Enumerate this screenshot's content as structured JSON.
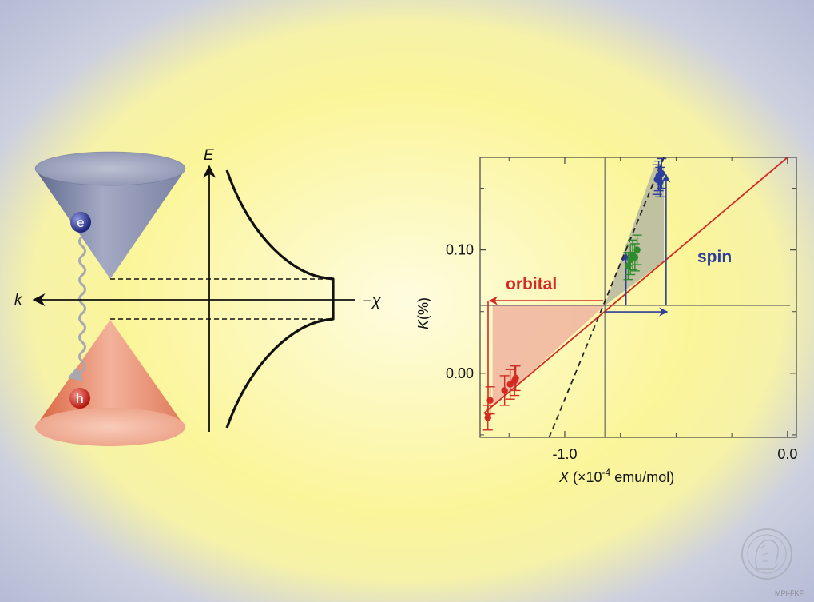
{
  "band_diagram": {
    "energy_axis_label": "E",
    "momentum_axis_label": "k",
    "chi_axis_label": "−χ",
    "electron_label": "e",
    "hole_label": "h",
    "colors": {
      "conduction_cone": "#8d95b4",
      "valence_cone": "#e7866c",
      "electron": "#2d3590",
      "hole": "#d32a22",
      "wavy_line": "#a8a8b0"
    }
  },
  "chart_data": {
    "type": "scatter",
    "xlabel_var": "X",
    "xlabel_rest": " (×10",
    "xlabel_exp": "-4",
    "xlabel_unit": " emu/mol)",
    "ylabel_var": "K",
    "ylabel_rest": "(%)",
    "xlim": [
      -1.38,
      0.04
    ],
    "ylim": [
      -0.052,
      0.175
    ],
    "x_ticks": [
      {
        "value": -1.0,
        "label": "-1.0"
      },
      {
        "value": 0.0,
        "label": "0.0"
      }
    ],
    "y_ticks": [
      {
        "value": 0.0,
        "label": "0.00"
      },
      {
        "value": 0.1,
        "label": "0.10"
      }
    ],
    "crossing_point": {
      "x": -0.82,
      "y": 0.055
    },
    "orbital_label": "orbital",
    "spin_label": "spin",
    "orbital_line": {
      "x": [
        -1.36,
        0.0
      ],
      "y": [
        -0.032,
        0.175
      ]
    },
    "dashed_line": {
      "x": [
        -1.07,
        -0.555
      ],
      "y": [
        -0.052,
        0.175
      ]
    },
    "series": [
      {
        "color": "#d32a22",
        "points": [
          {
            "x": -1.345,
            "y": -0.036,
            "err": 0.01
          },
          {
            "x": -1.335,
            "y": -0.022,
            "err": 0.011
          },
          {
            "x": -1.27,
            "y": -0.014,
            "err": 0.012
          },
          {
            "x": -1.245,
            "y": -0.009,
            "err": 0.012
          },
          {
            "x": -1.225,
            "y": -0.006,
            "err": 0.012
          },
          {
            "x": -1.22,
            "y": -0.004,
            "err": 0.01
          }
        ]
      },
      {
        "color": "#2e8b2e",
        "points": [
          {
            "x": -0.715,
            "y": 0.087,
            "err": 0.011
          },
          {
            "x": -0.705,
            "y": 0.092,
            "err": 0.012
          },
          {
            "x": -0.695,
            "y": 0.096,
            "err": 0.012
          },
          {
            "x": -0.685,
            "y": 0.094,
            "err": 0.011
          },
          {
            "x": -0.675,
            "y": 0.1,
            "err": 0.012
          }
        ]
      },
      {
        "color": "#2c3f9a",
        "points": [
          {
            "x": -0.585,
            "y": 0.157,
            "err": 0.012
          },
          {
            "x": -0.578,
            "y": 0.16,
            "err": 0.012
          },
          {
            "x": -0.572,
            "y": 0.155,
            "err": 0.012
          },
          {
            "x": -0.565,
            "y": 0.162,
            "err": 0.012
          }
        ]
      }
    ],
    "colors": {
      "orbital": "#d32a22",
      "spin": "#2c3f9a",
      "dashed": "#222222",
      "orbital_fill": "#f0b4a0",
      "spin_fill": "#b5b7a0"
    }
  },
  "watermark_text": "MPI-FKF"
}
